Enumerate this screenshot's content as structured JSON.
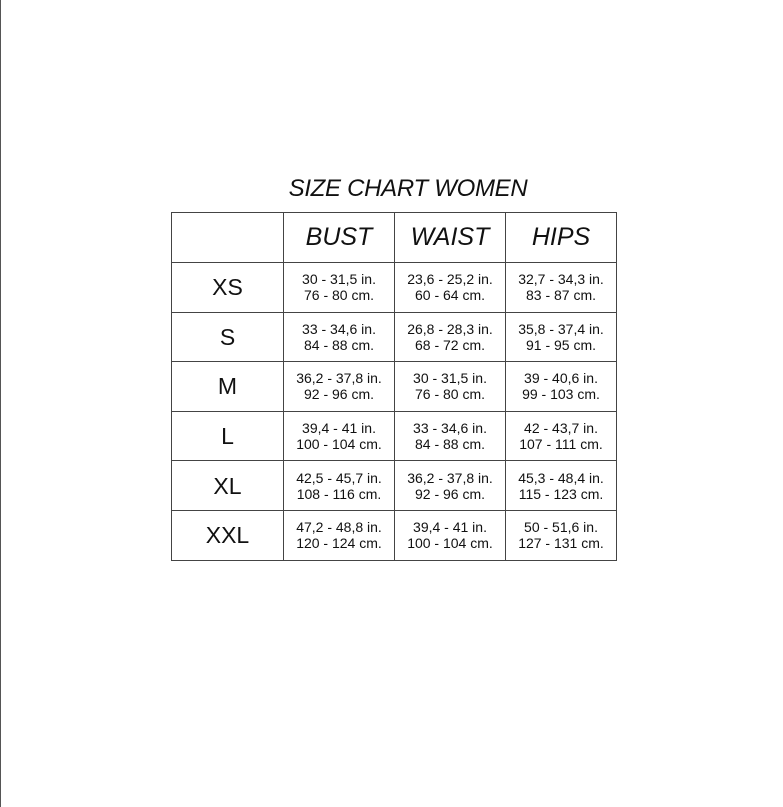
{
  "title": "SIZE CHART WOMEN",
  "headers": [
    "",
    "BUST",
    "WAIST",
    "HIPS"
  ],
  "rows": [
    {
      "size": "XS",
      "bust": [
        "30 - 31,5 in.",
        "76 - 80 cm."
      ],
      "waist": [
        "23,6 - 25,2 in.",
        "60 - 64 cm."
      ],
      "hips": [
        "32,7 - 34,3 in.",
        "83 - 87 cm."
      ]
    },
    {
      "size": "S",
      "bust": [
        "33 - 34,6 in.",
        "84 - 88 cm."
      ],
      "waist": [
        "26,8 - 28,3 in.",
        "68 - 72 cm."
      ],
      "hips": [
        "35,8 - 37,4 in.",
        "91 - 95 cm."
      ]
    },
    {
      "size": "M",
      "bust": [
        "36,2 - 37,8 in.",
        "92 - 96 cm."
      ],
      "waist": [
        "30 - 31,5 in.",
        "76 - 80 cm."
      ],
      "hips": [
        "39 - 40,6 in.",
        "99 - 103 cm."
      ]
    },
    {
      "size": "L",
      "bust": [
        "39,4 - 41 in.",
        "100 - 104 cm."
      ],
      "waist": [
        "33 - 34,6 in.",
        "84 - 88 cm."
      ],
      "hips": [
        "42 - 43,7 in.",
        "107 - 111 cm."
      ]
    },
    {
      "size": "XL",
      "bust": [
        "42,5 - 45,7 in.",
        "108 - 116 cm."
      ],
      "waist": [
        "36,2 - 37,8 in.",
        "92 - 96 cm."
      ],
      "hips": [
        "45,3 - 48,4 in.",
        "115 - 123 cm."
      ]
    },
    {
      "size": "XXL",
      "bust": [
        "47,2 - 48,8 in.",
        "120 - 124 cm."
      ],
      "waist": [
        "39,4 - 41 in.",
        "100 - 104 cm."
      ],
      "hips": [
        "50 - 51,6 in.",
        "127 - 131 cm."
      ]
    }
  ]
}
